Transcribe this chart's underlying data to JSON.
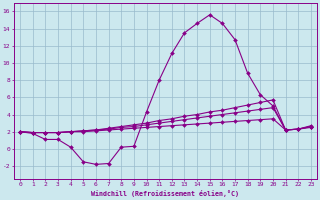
{
  "xlabel": "Windchill (Refroidissement éolien,°C)",
  "xlim": [
    -0.5,
    23.5
  ],
  "ylim": [
    -3.5,
    17
  ],
  "yticks": [
    -2,
    0,
    2,
    4,
    6,
    8,
    10,
    12,
    14,
    16
  ],
  "xticks": [
    0,
    1,
    2,
    3,
    4,
    5,
    6,
    7,
    8,
    9,
    10,
    11,
    12,
    13,
    14,
    15,
    16,
    17,
    18,
    19,
    20,
    21,
    22,
    23
  ],
  "bg_color": "#cce8ee",
  "grid_color": "#99bbcc",
  "line_color": "#880088",
  "curve1_x": [
    0,
    1,
    2,
    3,
    4,
    5,
    6,
    7,
    8,
    9,
    10,
    11,
    12,
    13,
    14,
    15,
    16,
    17,
    18,
    19,
    20,
    21,
    22,
    23
  ],
  "curve1_y": [
    2.0,
    1.8,
    1.1,
    1.1,
    0.2,
    -1.5,
    -1.8,
    -1.7,
    0.2,
    0.3,
    4.3,
    8.0,
    11.1,
    13.5,
    14.6,
    15.6,
    14.6,
    12.7,
    8.8,
    6.3,
    5.0,
    2.2,
    2.3,
    2.7
  ],
  "curve2_x": [
    0,
    1,
    2,
    3,
    4,
    5,
    6,
    7,
    8,
    9,
    10,
    11,
    12,
    13,
    14,
    15,
    16,
    17,
    18,
    19,
    20,
    21,
    22,
    23
  ],
  "curve2_y": [
    2.0,
    1.9,
    1.9,
    1.9,
    2.0,
    2.0,
    2.1,
    2.2,
    2.3,
    2.4,
    2.5,
    2.6,
    2.7,
    2.8,
    2.9,
    3.0,
    3.1,
    3.2,
    3.3,
    3.4,
    3.5,
    2.2,
    2.3,
    2.5
  ],
  "curve3_x": [
    0,
    1,
    2,
    3,
    4,
    5,
    6,
    7,
    8,
    9,
    10,
    11,
    12,
    13,
    14,
    15,
    16,
    17,
    18,
    19,
    20,
    21,
    22,
    23
  ],
  "curve3_y": [
    2.0,
    1.9,
    1.9,
    1.9,
    2.0,
    2.1,
    2.2,
    2.3,
    2.5,
    2.6,
    2.8,
    3.0,
    3.2,
    3.4,
    3.6,
    3.8,
    4.0,
    4.2,
    4.4,
    4.6,
    4.8,
    2.2,
    2.3,
    2.6
  ],
  "curve4_x": [
    0,
    1,
    2,
    3,
    4,
    5,
    6,
    7,
    8,
    9,
    10,
    11,
    12,
    13,
    14,
    15,
    16,
    17,
    18,
    19,
    20,
    21,
    22,
    23
  ],
  "curve4_y": [
    2.0,
    1.9,
    1.9,
    1.9,
    2.0,
    2.1,
    2.2,
    2.4,
    2.6,
    2.8,
    3.0,
    3.3,
    3.5,
    3.8,
    4.0,
    4.3,
    4.5,
    4.8,
    5.1,
    5.4,
    5.7,
    2.2,
    2.3,
    2.6
  ]
}
